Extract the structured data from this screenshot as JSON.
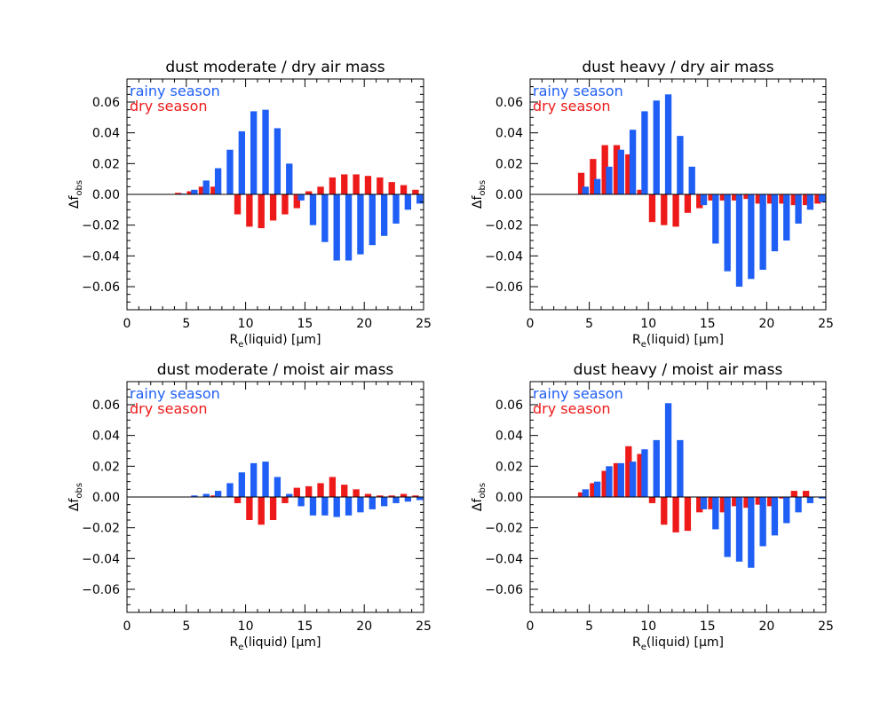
{
  "chart_data": [
    {
      "type": "bar",
      "title": "dust moderate / dry air mass",
      "xlabel": "R_e(liquid) [μm]",
      "ylabel": "Δf_obs",
      "xlim": [
        0,
        25
      ],
      "ylim": [
        -0.075,
        0.075
      ],
      "xticks": [
        "0",
        "5",
        "10",
        "15",
        "20",
        "25"
      ],
      "yticks": [
        "-0.06",
        "-0.04",
        "-0.02",
        "0.00",
        "0.02",
        "0.04",
        "0.06"
      ],
      "legend": "top-left",
      "series": [
        {
          "name": "rainy season",
          "color": "#1f5ff5",
          "x": [
            4.5,
            5.5,
            6.5,
            7.5,
            8.5,
            9.5,
            10.5,
            11.5,
            12.5,
            13.5,
            14.5,
            15.5,
            16.5,
            17.5,
            18.5,
            19.5,
            20.5,
            21.5,
            22.5,
            23.5,
            24.5
          ],
          "values": [
            0.0005,
            0.003,
            0.009,
            0.017,
            0.029,
            0.041,
            0.054,
            0.055,
            0.043,
            0.02,
            -0.004,
            -0.02,
            -0.031,
            -0.043,
            -0.043,
            -0.039,
            -0.033,
            -0.027,
            -0.019,
            -0.01,
            -0.006
          ]
        },
        {
          "name": "dry season",
          "color": "#ee1a1a",
          "x": [
            4.5,
            5.5,
            6.5,
            7.5,
            8.5,
            9.5,
            10.5,
            11.5,
            12.5,
            13.5,
            14.5,
            15.5,
            16.5,
            17.5,
            18.5,
            19.5,
            20.5,
            21.5,
            22.5,
            23.5,
            24.5
          ],
          "values": [
            0.001,
            0.002,
            0.005,
            0.005,
            0.0,
            -0.013,
            -0.021,
            -0.022,
            -0.017,
            -0.013,
            -0.009,
            0.002,
            0.005,
            0.011,
            0.013,
            0.013,
            0.012,
            0.011,
            0.008,
            0.006,
            0.003
          ]
        }
      ]
    },
    {
      "type": "bar",
      "title": "dust heavy / dry air mass",
      "xlabel": "R_e(liquid) [μm]",
      "ylabel": "Δf_obs",
      "xlim": [
        0,
        25
      ],
      "ylim": [
        -0.075,
        0.075
      ],
      "xticks": [
        "0",
        "5",
        "10",
        "15",
        "20",
        "25"
      ],
      "yticks": [
        "-0.06",
        "-0.04",
        "-0.02",
        "0.00",
        "0.02",
        "0.04",
        "0.06"
      ],
      "legend": "top-left",
      "series": [
        {
          "name": "rainy season",
          "color": "#1f5ff5",
          "x": [
            4.5,
            5.5,
            6.5,
            7.5,
            8.5,
            9.5,
            10.5,
            11.5,
            12.5,
            13.5,
            14.5,
            15.5,
            16.5,
            17.5,
            18.5,
            19.5,
            20.5,
            21.5,
            22.5,
            23.5,
            24.5
          ],
          "values": [
            0.005,
            0.01,
            0.018,
            0.029,
            0.042,
            0.054,
            0.061,
            0.065,
            0.038,
            0.018,
            -0.007,
            -0.032,
            -0.05,
            -0.06,
            -0.055,
            -0.049,
            -0.037,
            -0.03,
            -0.019,
            -0.01,
            -0.005
          ]
        },
        {
          "name": "dry season",
          "color": "#ee1a1a",
          "x": [
            4.5,
            5.5,
            6.5,
            7.5,
            8.5,
            9.5,
            10.5,
            11.5,
            12.5,
            13.5,
            14.5,
            15.5,
            16.5,
            17.5,
            18.5,
            19.5,
            20.5,
            21.5,
            22.5,
            23.5,
            24.5
          ],
          "values": [
            0.014,
            0.023,
            0.032,
            0.032,
            0.026,
            0.003,
            -0.018,
            -0.02,
            -0.021,
            -0.012,
            -0.009,
            -0.004,
            -0.004,
            -0.004,
            -0.003,
            -0.006,
            -0.006,
            -0.006,
            -0.007,
            -0.007,
            -0.006
          ]
        }
      ]
    },
    {
      "type": "bar",
      "title": "dust moderate / moist air mass",
      "xlabel": "R_e(liquid) [μm]",
      "ylabel": "Δf_obs",
      "xlim": [
        0,
        25
      ],
      "ylim": [
        -0.075,
        0.075
      ],
      "xticks": [
        "0",
        "5",
        "10",
        "15",
        "20",
        "25"
      ],
      "yticks": [
        "-0.06",
        "-0.04",
        "-0.02",
        "0.00",
        "0.02",
        "0.04",
        "0.06"
      ],
      "legend": "top-left",
      "series": [
        {
          "name": "rainy season",
          "color": "#1f5ff5",
          "x": [
            5.5,
            6.5,
            7.5,
            8.5,
            9.5,
            10.5,
            11.5,
            12.5,
            13.5,
            14.5,
            15.5,
            16.5,
            17.5,
            18.5,
            19.5,
            20.5,
            21.5,
            22.5,
            23.5,
            24.5
          ],
          "values": [
            0.001,
            0.002,
            0.004,
            0.009,
            0.016,
            0.022,
            0.023,
            0.013,
            0.002,
            -0.006,
            -0.012,
            -0.012,
            -0.013,
            -0.012,
            -0.01,
            -0.008,
            -0.006,
            -0.004,
            -0.003,
            -0.002
          ]
        },
        {
          "name": "dry season",
          "color": "#ee1a1a",
          "x": [
            7.5,
            8.5,
            9.5,
            10.5,
            11.5,
            12.5,
            13.5,
            14.5,
            15.5,
            16.5,
            17.5,
            18.5,
            19.5,
            20.5,
            21.5,
            22.5,
            23.5,
            24.5
          ],
          "values": [
            0.001,
            0.0,
            -0.004,
            -0.015,
            -0.018,
            -0.015,
            -0.004,
            0.006,
            0.007,
            0.009,
            0.013,
            0.008,
            0.005,
            0.002,
            0.001,
            0.001,
            0.002,
            0.001
          ]
        }
      ]
    },
    {
      "type": "bar",
      "title": "dust heavy / moist air mass",
      "xlabel": "R_e(liquid) [μm]",
      "ylabel": "Δf_obs",
      "xlim": [
        0,
        25
      ],
      "ylim": [
        -0.075,
        0.075
      ],
      "xticks": [
        "0",
        "5",
        "10",
        "15",
        "20",
        "25"
      ],
      "yticks": [
        "-0.06",
        "-0.04",
        "-0.02",
        "0.00",
        "0.02",
        "0.04",
        "0.06"
      ],
      "legend": "top-left",
      "series": [
        {
          "name": "rainy season",
          "color": "#1f5ff5",
          "x": [
            4.5,
            5.5,
            6.5,
            7.5,
            8.5,
            9.5,
            10.5,
            11.5,
            12.5,
            13.5,
            14.5,
            15.5,
            16.5,
            17.5,
            18.5,
            19.5,
            20.5,
            21.5,
            22.5,
            23.5,
            24.5
          ],
          "values": [
            0.005,
            0.01,
            0.02,
            0.022,
            0.023,
            0.031,
            0.037,
            0.061,
            0.037,
            0.0,
            -0.008,
            -0.021,
            -0.039,
            -0.042,
            -0.046,
            -0.032,
            -0.025,
            -0.017,
            -0.01,
            -0.004,
            -0.001
          ]
        },
        {
          "name": "dry season",
          "color": "#ee1a1a",
          "x": [
            4.5,
            5.5,
            6.5,
            7.5,
            8.5,
            9.5,
            10.5,
            11.5,
            12.5,
            13.5,
            14.5,
            15.5,
            16.5,
            17.5,
            18.5,
            19.5,
            20.5,
            21.5,
            22.5,
            23.5,
            24.5
          ],
          "values": [
            0.003,
            0.009,
            0.017,
            0.022,
            0.033,
            0.028,
            -0.004,
            -0.018,
            -0.023,
            -0.022,
            -0.01,
            -0.008,
            -0.01,
            -0.006,
            -0.007,
            -0.005,
            -0.006,
            -0.001,
            0.004,
            0.004,
            0.0
          ]
        }
      ]
    }
  ]
}
